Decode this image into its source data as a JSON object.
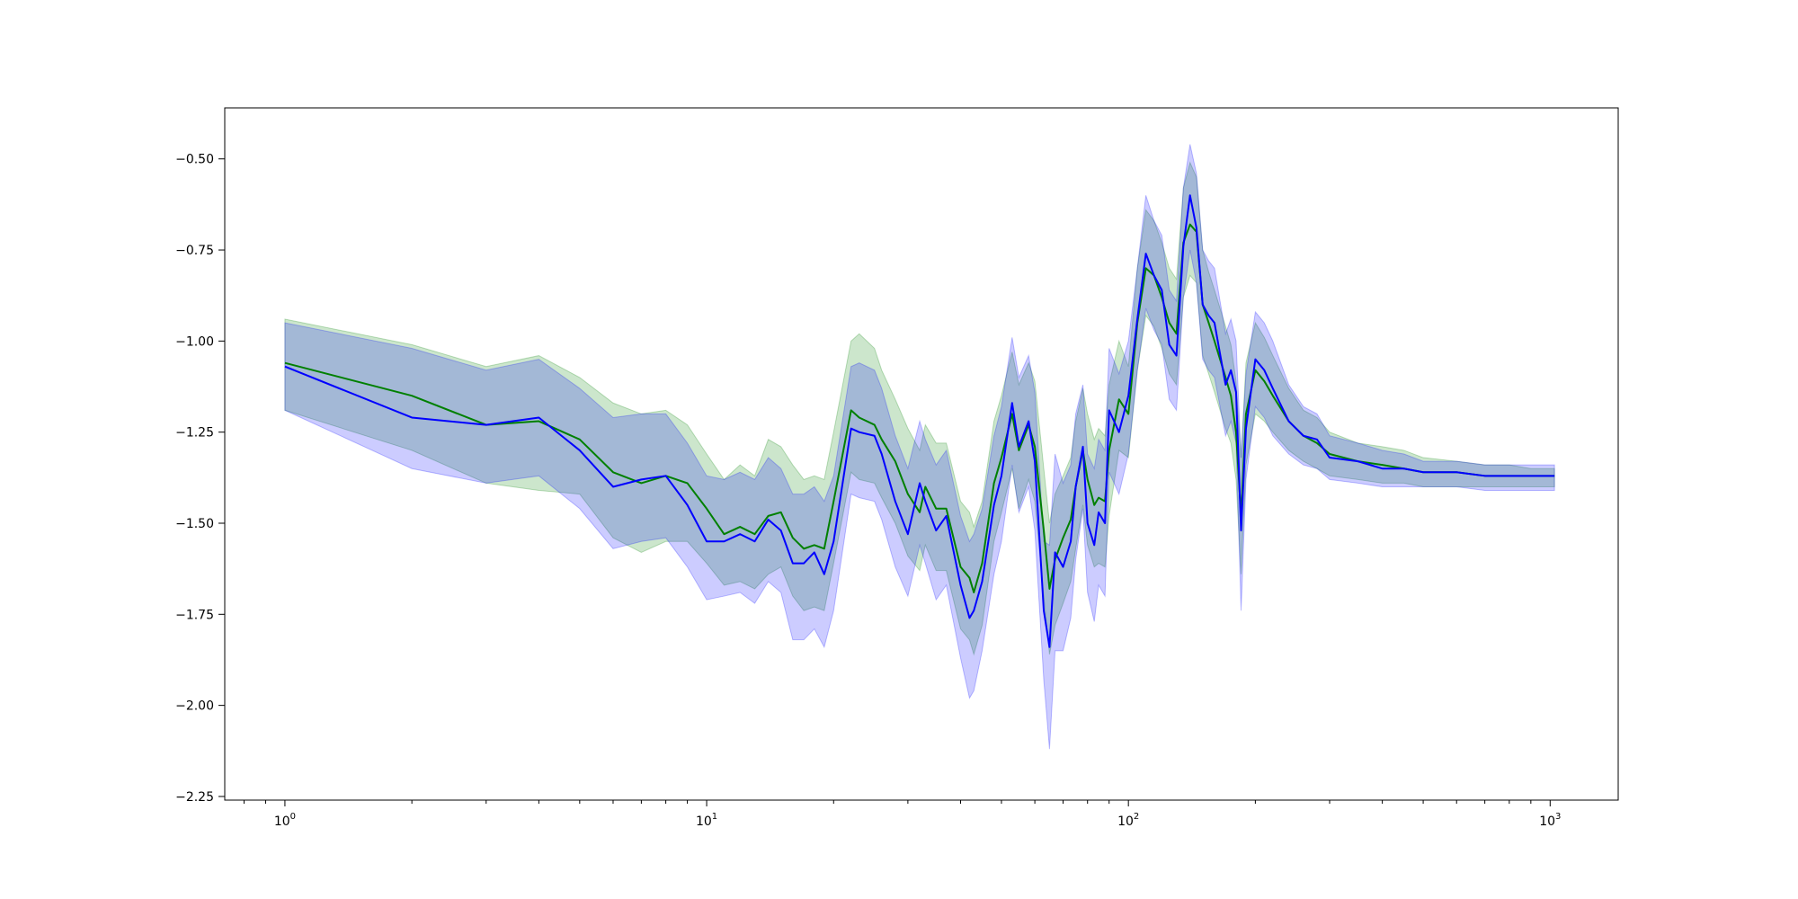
{
  "chart_data": {
    "type": "line",
    "title": "",
    "xlabel": "",
    "ylabel": "",
    "xscale": "log",
    "xlim": [
      0.72,
      1450
    ],
    "ylim": [
      -2.26,
      -0.36
    ],
    "grid": false,
    "legend": "none",
    "x_ticks": [
      {
        "value": 1,
        "base": "10",
        "exp": "0"
      },
      {
        "value": 10,
        "base": "10",
        "exp": "1"
      },
      {
        "value": 100,
        "base": "10",
        "exp": "2"
      },
      {
        "value": 1000,
        "base": "10",
        "exp": "3"
      }
    ],
    "y_ticks": [
      {
        "value": -0.5,
        "label": "−0.50"
      },
      {
        "value": -0.75,
        "label": "−0.75"
      },
      {
        "value": -1.0,
        "label": "−1.00"
      },
      {
        "value": -1.25,
        "label": "−1.25"
      },
      {
        "value": -1.5,
        "label": "−1.50"
      },
      {
        "value": -1.75,
        "label": "−1.75"
      },
      {
        "value": -2.0,
        "label": "−2.00"
      },
      {
        "value": -2.25,
        "label": "−2.25"
      }
    ],
    "series": [
      {
        "color": "#008000",
        "band_color": "#008000",
        "band_opacity": 0.2,
        "x": [
          1,
          2,
          3,
          4,
          5,
          6,
          7,
          8,
          9,
          10,
          11,
          12,
          13,
          14,
          15,
          16,
          17,
          18,
          19,
          20,
          22,
          23,
          25,
          26,
          28,
          30,
          32,
          33,
          35,
          37,
          40,
          42,
          43,
          45,
          48,
          50,
          53,
          55,
          58,
          60,
          63,
          65,
          67,
          70,
          73,
          75,
          78,
          80,
          83,
          85,
          88,
          90,
          95,
          100,
          105,
          110,
          115,
          120,
          125,
          130,
          135,
          140,
          145,
          150,
          155,
          160,
          170,
          175,
          180,
          185,
          190,
          200,
          210,
          220,
          240,
          260,
          280,
          300,
          350,
          400,
          450,
          500,
          600,
          700,
          800,
          900,
          1024
        ],
        "y": [
          -1.06,
          -1.15,
          -1.23,
          -1.22,
          -1.27,
          -1.36,
          -1.39,
          -1.37,
          -1.39,
          -1.46,
          -1.53,
          -1.51,
          -1.53,
          -1.48,
          -1.47,
          -1.54,
          -1.57,
          -1.56,
          -1.57,
          -1.44,
          -1.19,
          -1.21,
          -1.23,
          -1.27,
          -1.33,
          -1.42,
          -1.47,
          -1.4,
          -1.46,
          -1.46,
          -1.62,
          -1.65,
          -1.69,
          -1.61,
          -1.39,
          -1.32,
          -1.2,
          -1.3,
          -1.23,
          -1.29,
          -1.52,
          -1.68,
          -1.6,
          -1.54,
          -1.49,
          -1.4,
          -1.3,
          -1.38,
          -1.45,
          -1.43,
          -1.44,
          -1.3,
          -1.16,
          -1.2,
          -0.95,
          -0.8,
          -0.82,
          -0.88,
          -0.95,
          -0.98,
          -0.73,
          -0.68,
          -0.7,
          -0.9,
          -0.95,
          -1.0,
          -1.1,
          -1.15,
          -1.25,
          -1.48,
          -1.2,
          -1.08,
          -1.11,
          -1.15,
          -1.22,
          -1.26,
          -1.28,
          -1.31,
          -1.33,
          -1.34,
          -1.35,
          -1.36,
          -1.36,
          -1.37,
          -1.37,
          -1.37,
          -1.37
        ],
        "lower": [
          -1.19,
          -1.3,
          -1.39,
          -1.41,
          -1.42,
          -1.54,
          -1.58,
          -1.55,
          -1.55,
          -1.61,
          -1.67,
          -1.66,
          -1.68,
          -1.64,
          -1.62,
          -1.7,
          -1.74,
          -1.73,
          -1.74,
          -1.61,
          -1.36,
          -1.38,
          -1.39,
          -1.43,
          -1.5,
          -1.59,
          -1.63,
          -1.56,
          -1.63,
          -1.63,
          -1.79,
          -1.82,
          -1.86,
          -1.78,
          -1.55,
          -1.47,
          -1.35,
          -1.46,
          -1.38,
          -1.44,
          -1.7,
          -1.86,
          -1.78,
          -1.72,
          -1.66,
          -1.57,
          -1.45,
          -1.56,
          -1.62,
          -1.61,
          -1.62,
          -1.48,
          -1.3,
          -1.32,
          -1.08,
          -0.93,
          -0.96,
          -1.02,
          -1.09,
          -1.12,
          -0.88,
          -0.82,
          -0.84,
          -1.04,
          -1.09,
          -1.14,
          -1.24,
          -1.28,
          -1.38,
          -1.64,
          -1.34,
          -1.2,
          -1.22,
          -1.25,
          -1.3,
          -1.33,
          -1.35,
          -1.37,
          -1.38,
          -1.39,
          -1.39,
          -1.4,
          -1.4,
          -1.4,
          -1.4,
          -1.4,
          -1.4
        ],
        "upper": [
          -0.94,
          -1.01,
          -1.07,
          -1.04,
          -1.1,
          -1.17,
          -1.2,
          -1.19,
          -1.23,
          -1.31,
          -1.38,
          -1.34,
          -1.37,
          -1.27,
          -1.29,
          -1.34,
          -1.38,
          -1.37,
          -1.38,
          -1.25,
          -1.0,
          -0.98,
          -1.02,
          -1.08,
          -1.16,
          -1.24,
          -1.3,
          -1.23,
          -1.28,
          -1.28,
          -1.44,
          -1.47,
          -1.51,
          -1.44,
          -1.22,
          -1.15,
          -1.03,
          -1.12,
          -1.06,
          -1.11,
          -1.35,
          -1.5,
          -1.42,
          -1.37,
          -1.32,
          -1.22,
          -1.13,
          -1.2,
          -1.27,
          -1.24,
          -1.26,
          -1.12,
          -1.0,
          -1.07,
          -0.8,
          -0.64,
          -0.67,
          -0.73,
          -0.8,
          -0.83,
          -0.58,
          -0.51,
          -0.55,
          -0.75,
          -0.81,
          -0.86,
          -0.96,
          -1.01,
          -1.11,
          -1.32,
          -1.06,
          -0.95,
          -0.99,
          -1.04,
          -1.13,
          -1.19,
          -1.21,
          -1.25,
          -1.28,
          -1.29,
          -1.3,
          -1.32,
          -1.33,
          -1.34,
          -1.34,
          -1.35,
          -1.35
        ]
      },
      {
        "color": "#0000ff",
        "band_color": "#0000ff",
        "band_opacity": 0.2,
        "x": [
          1,
          2,
          3,
          4,
          5,
          6,
          7,
          8,
          9,
          10,
          11,
          12,
          13,
          14,
          15,
          16,
          17,
          18,
          19,
          20,
          22,
          23,
          25,
          26,
          28,
          30,
          32,
          33,
          35,
          37,
          40,
          42,
          43,
          45,
          48,
          50,
          53,
          55,
          58,
          60,
          63,
          65,
          67,
          70,
          73,
          75,
          78,
          80,
          83,
          85,
          88,
          90,
          95,
          100,
          105,
          110,
          115,
          120,
          125,
          130,
          135,
          140,
          145,
          150,
          155,
          160,
          170,
          175,
          180,
          185,
          190,
          200,
          210,
          220,
          240,
          260,
          280,
          300,
          350,
          400,
          450,
          500,
          600,
          700,
          800,
          900,
          1024
        ],
        "y": [
          -1.07,
          -1.21,
          -1.23,
          -1.21,
          -1.3,
          -1.4,
          -1.38,
          -1.37,
          -1.45,
          -1.55,
          -1.55,
          -1.53,
          -1.55,
          -1.49,
          -1.52,
          -1.61,
          -1.61,
          -1.58,
          -1.64,
          -1.55,
          -1.24,
          -1.25,
          -1.26,
          -1.31,
          -1.44,
          -1.53,
          -1.39,
          -1.44,
          -1.52,
          -1.48,
          -1.67,
          -1.76,
          -1.74,
          -1.66,
          -1.45,
          -1.37,
          -1.17,
          -1.29,
          -1.22,
          -1.33,
          -1.74,
          -1.84,
          -1.58,
          -1.62,
          -1.55,
          -1.4,
          -1.29,
          -1.5,
          -1.56,
          -1.47,
          -1.5,
          -1.19,
          -1.25,
          -1.15,
          -0.94,
          -0.76,
          -0.82,
          -0.86,
          -1.01,
          -1.04,
          -0.74,
          -0.6,
          -0.69,
          -0.9,
          -0.93,
          -0.95,
          -1.12,
          -1.08,
          -1.14,
          -1.52,
          -1.24,
          -1.05,
          -1.08,
          -1.13,
          -1.22,
          -1.26,
          -1.27,
          -1.32,
          -1.33,
          -1.35,
          -1.35,
          -1.36,
          -1.36,
          -1.37,
          -1.37,
          -1.37,
          -1.37
        ],
        "lower": [
          -1.19,
          -1.35,
          -1.39,
          -1.37,
          -1.46,
          -1.57,
          -1.55,
          -1.54,
          -1.62,
          -1.71,
          -1.7,
          -1.69,
          -1.72,
          -1.66,
          -1.69,
          -1.82,
          -1.82,
          -1.79,
          -1.84,
          -1.74,
          -1.42,
          -1.43,
          -1.44,
          -1.49,
          -1.62,
          -1.7,
          -1.56,
          -1.61,
          -1.71,
          -1.67,
          -1.87,
          -1.98,
          -1.96,
          -1.85,
          -1.64,
          -1.55,
          -1.34,
          -1.47,
          -1.4,
          -1.52,
          -1.93,
          -2.12,
          -1.85,
          -1.85,
          -1.76,
          -1.6,
          -1.46,
          -1.69,
          -1.77,
          -1.67,
          -1.7,
          -1.36,
          -1.42,
          -1.31,
          -1.08,
          -0.91,
          -0.97,
          -1.01,
          -1.16,
          -1.19,
          -0.88,
          -0.75,
          -0.84,
          -1.05,
          -1.08,
          -1.1,
          -1.26,
          -1.22,
          -1.28,
          -1.74,
          -1.38,
          -1.18,
          -1.21,
          -1.26,
          -1.31,
          -1.34,
          -1.35,
          -1.38,
          -1.39,
          -1.4,
          -1.4,
          -1.4,
          -1.4,
          -1.41,
          -1.41,
          -1.41,
          -1.41
        ],
        "upper": [
          -0.95,
          -1.02,
          -1.08,
          -1.05,
          -1.13,
          -1.21,
          -1.2,
          -1.2,
          -1.28,
          -1.37,
          -1.38,
          -1.36,
          -1.38,
          -1.32,
          -1.35,
          -1.42,
          -1.42,
          -1.4,
          -1.44,
          -1.37,
          -1.07,
          -1.06,
          -1.08,
          -1.13,
          -1.26,
          -1.35,
          -1.22,
          -1.27,
          -1.34,
          -1.3,
          -1.48,
          -1.55,
          -1.53,
          -1.46,
          -1.26,
          -1.18,
          -0.99,
          -1.1,
          -1.04,
          -1.14,
          -1.55,
          -1.56,
          -1.31,
          -1.39,
          -1.34,
          -1.2,
          -1.12,
          -1.31,
          -1.35,
          -1.27,
          -1.3,
          -1.02,
          -1.09,
          -1.0,
          -0.8,
          -0.6,
          -0.67,
          -0.71,
          -0.86,
          -0.89,
          -0.58,
          -0.46,
          -0.54,
          -0.75,
          -0.78,
          -0.8,
          -0.98,
          -0.94,
          -1.0,
          -1.32,
          -1.09,
          -0.92,
          -0.95,
          -1.0,
          -1.12,
          -1.18,
          -1.2,
          -1.26,
          -1.28,
          -1.3,
          -1.31,
          -1.33,
          -1.33,
          -1.34,
          -1.34,
          -1.34,
          -1.34
        ]
      }
    ]
  }
}
